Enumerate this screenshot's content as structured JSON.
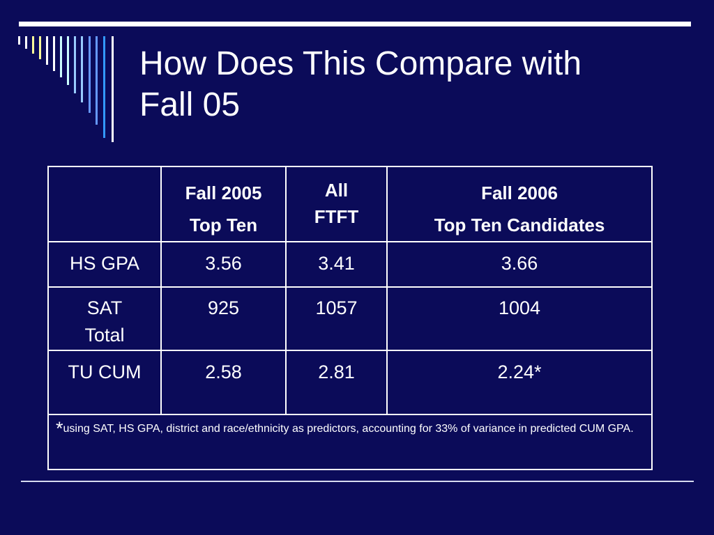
{
  "slide": {
    "title_line1": "How Does This Compare with",
    "title_line2": "Fall 05"
  },
  "decoration": {
    "stripe_colors": [
      "#ffffff",
      "#ffffff",
      "#ffff99",
      "#ffff99",
      "#ffffff",
      "#ffffff",
      "#ccffff",
      "#ccffff",
      "#99ccff",
      "#99ccff",
      "#6699ff",
      "#6699ff",
      "#3399ff"
    ]
  },
  "table": {
    "headers": {
      "col0": "",
      "col1_line1": "Fall 2005",
      "col1_line2": "Top Ten",
      "col2_line1": "All",
      "col2_line2": "FTFT",
      "col3_line1": "Fall 2006",
      "col3_line2": "Top Ten Candidates"
    },
    "rows": [
      {
        "label": "HS GPA",
        "fall2005": "3.56",
        "all_ftft": "3.41",
        "fall2006": "3.66"
      },
      {
        "label_line1": "SAT",
        "label_line2": "Total",
        "fall2005": "925",
        "all_ftft": "1057",
        "fall2006": "1004"
      },
      {
        "label": "TU CUM",
        "fall2005": "2.58",
        "all_ftft": "2.81",
        "fall2006": "2.24*"
      }
    ],
    "footnote": {
      "marker": "*",
      "text": "using SAT, HS GPA, district and race/ethnicity as predictors, accounting for 33% of variance in predicted CUM GPA."
    }
  }
}
